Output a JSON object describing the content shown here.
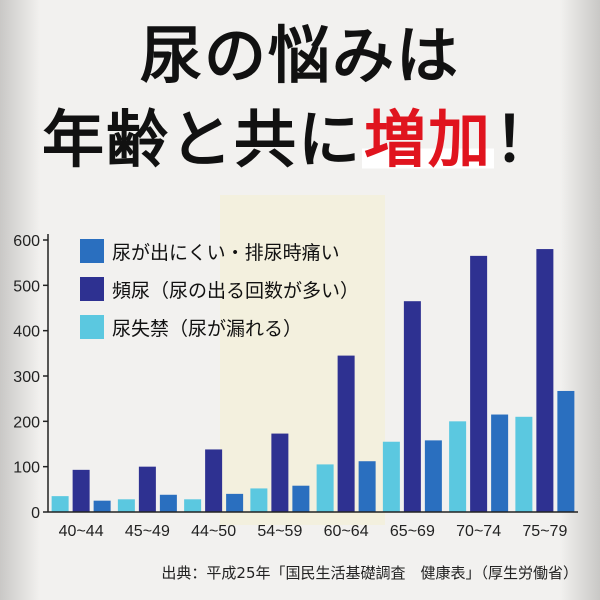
{
  "title_line1": "尿の悩みは",
  "title_line2_prefix": "年齢と共に",
  "title_line2_highlight": "増加",
  "title_line2_suffix": "！",
  "source": "出典：平成25年「国民生活基礎調査　健康表」（厚生労働省）",
  "colors": {
    "series1": "#2a6fbf",
    "series2": "#2e3191",
    "series3": "#5bc8e0",
    "highlight": "#e0141e"
  },
  "chart_data": {
    "type": "bar",
    "categories": [
      "40~44",
      "45~49",
      "44~50",
      "54~59",
      "60~64",
      "65~69",
      "70~74",
      "75~79"
    ],
    "ylim": [
      0,
      600
    ],
    "yticks": [
      0,
      100,
      200,
      300,
      400,
      500,
      600
    ],
    "grid": false,
    "legend_position": "top-left",
    "series": [
      {
        "name": "尿失禁（尿が漏れる）",
        "color": "#5bc8e0",
        "values": [
          35,
          28,
          28,
          52,
          105,
          155,
          200,
          210
        ]
      },
      {
        "name": "頻尿（尿の出る回数が多い）",
        "color": "#2e3191",
        "values": [
          93,
          100,
          138,
          173,
          345,
          465,
          565,
          580
        ]
      },
      {
        "name": "尿が出にくい・排尿時痛い",
        "color": "#2a6fbf",
        "values": [
          25,
          38,
          40,
          58,
          112,
          158,
          215,
          267
        ]
      }
    ]
  }
}
